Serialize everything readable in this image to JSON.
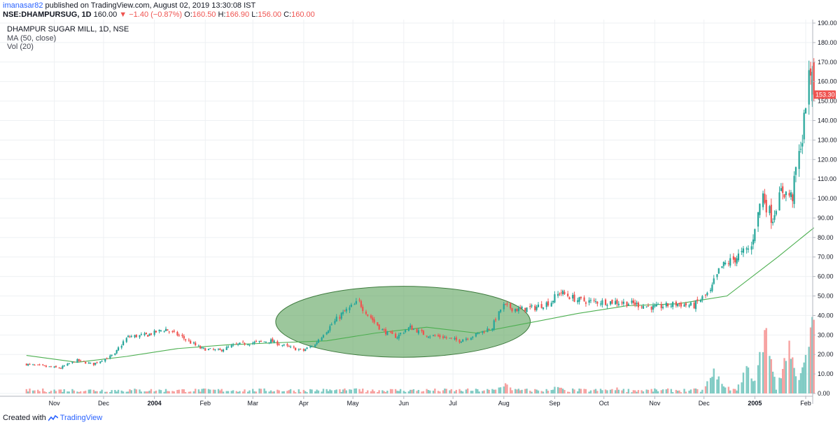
{
  "header": {
    "author": "imanasar82",
    "published": "published on TradingView.com, August 02, 2019 13:30:08 IST",
    "symbol": "NSE:DHAMPURSUG, 1D",
    "last": "160.00",
    "change_arrow": "▼",
    "change": "−1.40 (−0.87%)",
    "open_label": "O:",
    "open": "160.50",
    "high_label": "H:",
    "high": "166.90",
    "low_label": "L:",
    "low": "156.00",
    "close_label": "C:",
    "close": "160.00"
  },
  "legend": {
    "title": "DHAMPUR SUGAR MILL, 1D, NSE",
    "ma": "MA (50, close)",
    "vol": "Vol (20)"
  },
  "footer": {
    "created": "Created with",
    "brand": "TradingView",
    "logo_icon": "tradingview-logo-icon"
  },
  "colors": {
    "up": "#26a69a",
    "down": "#ef5350",
    "ma": "#4caf50",
    "ellipse_fill": "#5fa45f",
    "ellipse_stroke": "#3d7a3d",
    "vol_up": "#80cbc4",
    "vol_down": "#f7a1a0",
    "grid": "#eef0f3"
  },
  "chart_data": {
    "type": "candlestick",
    "title": "DHAMPUR SUGAR MILL, 1D, NSE",
    "price_axis": {
      "min": 0,
      "max": 190,
      "step": 10,
      "labels": [
        "0.00",
        "10.00",
        "20.00",
        "30.00",
        "40.00",
        "50.00",
        "60.00",
        "70.00",
        "80.00",
        "90.00",
        "100.00",
        "110.00",
        "120.00",
        "130.00",
        "140.00",
        "150.00",
        "160.00",
        "170.00",
        "180.00",
        "190.00"
      ]
    },
    "current_price_label": "153.30",
    "current_price": 153.3,
    "time_labels": [
      {
        "label": "Nov",
        "date": "2003-11-01",
        "bold": false
      },
      {
        "label": "Dec",
        "date": "2003-12-01",
        "bold": false
      },
      {
        "label": "2004",
        "date": "2004-01-01",
        "bold": true
      },
      {
        "label": "Feb",
        "date": "2004-02-01",
        "bold": false
      },
      {
        "label": "Mar",
        "date": "2004-03-01",
        "bold": false
      },
      {
        "label": "Apr",
        "date": "2004-04-01",
        "bold": false
      },
      {
        "label": "May",
        "date": "2004-05-01",
        "bold": false
      },
      {
        "label": "Jun",
        "date": "2004-06-01",
        "bold": false
      },
      {
        "label": "Jul",
        "date": "2004-07-01",
        "bold": false
      },
      {
        "label": "Aug",
        "date": "2004-08-01",
        "bold": false
      },
      {
        "label": "Sep",
        "date": "2004-09-01",
        "bold": false
      },
      {
        "label": "Oct",
        "date": "2004-10-01",
        "bold": false
      },
      {
        "label": "Nov",
        "date": "2004-11-01",
        "bold": false
      },
      {
        "label": "Dec",
        "date": "2004-12-01",
        "bold": false
      },
      {
        "label": "2005",
        "date": "2005-01-01",
        "bold": true
      },
      {
        "label": "Feb",
        "date": "2005-02-01",
        "bold": false
      }
    ],
    "close_series": [
      {
        "date": "2003-10-15",
        "close": 15
      },
      {
        "date": "2003-10-25",
        "close": 14
      },
      {
        "date": "2003-11-05",
        "close": 13
      },
      {
        "date": "2003-11-15",
        "close": 17
      },
      {
        "date": "2003-11-25",
        "close": 15
      },
      {
        "date": "2003-12-08",
        "close": 20
      },
      {
        "date": "2003-12-16",
        "close": 29
      },
      {
        "date": "2003-12-28",
        "close": 30
      },
      {
        "date": "2004-01-08",
        "close": 33
      },
      {
        "date": "2004-01-18",
        "close": 29
      },
      {
        "date": "2004-01-30",
        "close": 23
      },
      {
        "date": "2004-02-10",
        "close": 22
      },
      {
        "date": "2004-02-20",
        "close": 25
      },
      {
        "date": "2004-03-01",
        "close": 26
      },
      {
        "date": "2004-03-12",
        "close": 27
      },
      {
        "date": "2004-03-22",
        "close": 24
      },
      {
        "date": "2004-04-01",
        "close": 22
      },
      {
        "date": "2004-04-08",
        "close": 25
      },
      {
        "date": "2004-04-16",
        "close": 33
      },
      {
        "date": "2004-04-25",
        "close": 41
      },
      {
        "date": "2004-05-05",
        "close": 47
      },
      {
        "date": "2004-05-12",
        "close": 39
      },
      {
        "date": "2004-05-20",
        "close": 32
      },
      {
        "date": "2004-05-28",
        "close": 29
      },
      {
        "date": "2004-06-05",
        "close": 34
      },
      {
        "date": "2004-06-15",
        "close": 30
      },
      {
        "date": "2004-06-25",
        "close": 29
      },
      {
        "date": "2004-07-05",
        "close": 27
      },
      {
        "date": "2004-07-15",
        "close": 30
      },
      {
        "date": "2004-07-25",
        "close": 34
      },
      {
        "date": "2004-08-01",
        "close": 45
      },
      {
        "date": "2004-08-10",
        "close": 43
      },
      {
        "date": "2004-08-20",
        "close": 44
      },
      {
        "date": "2004-08-30",
        "close": 47
      },
      {
        "date": "2004-09-05",
        "close": 52
      },
      {
        "date": "2004-09-15",
        "close": 48
      },
      {
        "date": "2004-09-25",
        "close": 47
      },
      {
        "date": "2004-10-08",
        "close": 47
      },
      {
        "date": "2004-10-20",
        "close": 46
      },
      {
        "date": "2004-11-01",
        "close": 44
      },
      {
        "date": "2004-11-15",
        "close": 46
      },
      {
        "date": "2004-11-25",
        "close": 45
      },
      {
        "date": "2004-12-05",
        "close": 52
      },
      {
        "date": "2004-12-12",
        "close": 65
      },
      {
        "date": "2004-12-20",
        "close": 69
      },
      {
        "date": "2004-12-30",
        "close": 75
      },
      {
        "date": "2005-01-06",
        "close": 102
      },
      {
        "date": "2005-01-12",
        "close": 90
      },
      {
        "date": "2005-01-18",
        "close": 104
      },
      {
        "date": "2005-01-24",
        "close": 101
      },
      {
        "date": "2005-01-30",
        "close": 130
      },
      {
        "date": "2005-02-04",
        "close": 165
      },
      {
        "date": "2005-02-06",
        "close": 153.3
      }
    ],
    "ma_series": [
      {
        "date": "2003-10-15",
        "value": 19.5
      },
      {
        "date": "2003-11-15",
        "value": 16
      },
      {
        "date": "2003-12-15",
        "value": 19
      },
      {
        "date": "2004-01-15",
        "value": 23
      },
      {
        "date": "2004-02-15",
        "value": 25
      },
      {
        "date": "2004-03-15",
        "value": 26
      },
      {
        "date": "2004-04-15",
        "value": 27
      },
      {
        "date": "2004-05-15",
        "value": 31
      },
      {
        "date": "2004-06-15",
        "value": 34
      },
      {
        "date": "2004-07-15",
        "value": 31
      },
      {
        "date": "2004-08-15",
        "value": 36
      },
      {
        "date": "2004-09-15",
        "value": 41
      },
      {
        "date": "2004-10-15",
        "value": 45
      },
      {
        "date": "2004-11-15",
        "value": 46
      },
      {
        "date": "2004-12-15",
        "value": 50
      },
      {
        "date": "2005-01-15",
        "value": 70
      },
      {
        "date": "2005-02-06",
        "value": 85
      }
    ],
    "volume_spikes": [
      {
        "date": "2004-05-02",
        "rel": 0.3
      },
      {
        "date": "2004-08-02",
        "rel": 0.6
      },
      {
        "date": "2004-09-03",
        "rel": 0.4
      },
      {
        "date": "2004-10-09",
        "rel": 0.3
      },
      {
        "date": "2004-12-08",
        "rel": 0.8
      },
      {
        "date": "2004-12-28",
        "rel": 1.0
      },
      {
        "date": "2005-01-08",
        "rel": 2.2
      },
      {
        "date": "2005-01-22",
        "rel": 1.7
      },
      {
        "date": "2005-02-02",
        "rel": 1.7
      },
      {
        "date": "2005-02-07",
        "rel": 3.3
      }
    ],
    "annotation": {
      "shape": "ellipse",
      "start": "2004-04-01",
      "end": "2004-08-15",
      "price_low": 20,
      "price_high": 55
    }
  }
}
